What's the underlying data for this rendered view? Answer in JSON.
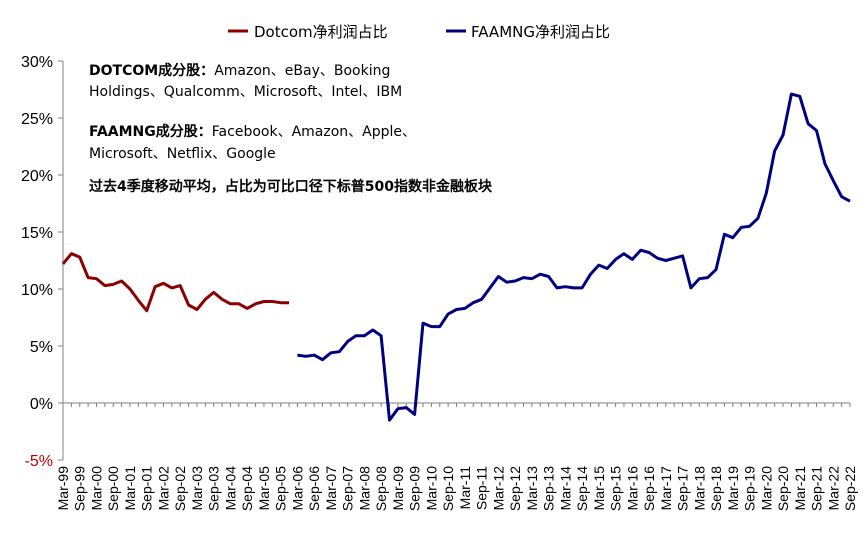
{
  "chart_data": {
    "type": "line",
    "legend": {
      "position": "top",
      "entries": [
        {
          "name": "Dotcom净利润占比",
          "color": "#8b0000"
        },
        {
          "name": "FAAMNG净利润占比",
          "color": "#000080"
        }
      ]
    },
    "ylim": [
      -5,
      30
    ],
    "yticks": [
      "-5%",
      "0%",
      "5%",
      "10%",
      "15%",
      "20%",
      "25%",
      "30%"
    ],
    "ytick_values": [
      -5,
      0,
      5,
      10,
      15,
      20,
      25,
      30
    ],
    "xticks": [
      "Mar-99",
      "Sep-99",
      "Mar-00",
      "Sep-00",
      "Mar-01",
      "Sep-01",
      "Mar-02",
      "Sep-02",
      "Mar-03",
      "Sep-03",
      "Mar-04",
      "Sep-04",
      "Mar-05",
      "Sep-05",
      "Mar-06",
      "Sep-06",
      "Mar-07",
      "Sep-07",
      "Mar-08",
      "Sep-08",
      "Mar-09",
      "Sep-09",
      "Mar-10",
      "Sep-10",
      "Mar-11",
      "Sep-11",
      "Mar-12",
      "Sep-12",
      "Mar-13",
      "Sep-13",
      "Mar-14",
      "Sep-14",
      "Mar-15",
      "Sep-15",
      "Mar-16",
      "Sep-16",
      "Mar-17",
      "Sep-17",
      "Mar-18",
      "Sep-18",
      "Mar-19",
      "Sep-19",
      "Mar-20",
      "Sep-20",
      "Mar-21",
      "Sep-21",
      "Mar-22",
      "Sep-22"
    ],
    "grid": false,
    "annotations": {
      "dotcom_label": "DOTCOM成分股：",
      "dotcom_line1": "Amazon、eBay、Booking",
      "dotcom_line2": "Holdings、Qualcomm、Microsoft、Intel、IBM",
      "faamng_label": "FAAMNG成分股：",
      "faamng_line1": "Facebook、Amazon、Apple、",
      "faamng_line2": "Microsoft、Netflix、Google",
      "note": "过去4季度移动平均，占比为可比口径下标普500指数非金融板块"
    },
    "series": [
      {
        "name": "Dotcom净利润占比",
        "color": "#8b0000",
        "start_x": "Mar-99",
        "frequency": "quarterly",
        "values": [
          12.2,
          13.1,
          12.8,
          11.0,
          10.9,
          10.3,
          10.4,
          10.7,
          10.0,
          9.0,
          8.1,
          10.2,
          10.5,
          10.1,
          10.3,
          8.6,
          8.2,
          9.1,
          9.7,
          9.1,
          8.7,
          8.7,
          8.3,
          8.7,
          8.9,
          8.9,
          8.8,
          8.8
        ]
      },
      {
        "name": "FAAMNG净利润占比",
        "color": "#000080",
        "start_x": "Mar-06",
        "frequency": "quarterly",
        "values": [
          4.2,
          4.1,
          4.2,
          3.8,
          4.4,
          4.5,
          5.4,
          5.9,
          5.9,
          6.4,
          5.9,
          -1.5,
          -0.5,
          -0.4,
          -1.0,
          7.0,
          6.7,
          6.7,
          7.8,
          8.2,
          8.3,
          8.8,
          9.1,
          10.1,
          11.1,
          10.6,
          10.7,
          11.0,
          10.9,
          11.3,
          11.1,
          10.1,
          10.2,
          10.1,
          10.1,
          11.3,
          12.1,
          11.8,
          12.6,
          13.1,
          12.6,
          13.4,
          13.2,
          12.7,
          12.5,
          12.7,
          12.9,
          10.1,
          10.9,
          11.0,
          11.7,
          14.8,
          14.5,
          15.4,
          15.5,
          16.2,
          18.4,
          22.1,
          23.5,
          27.1,
          26.9,
          24.5,
          23.9,
          21.0,
          19.5,
          18.1,
          17.7
        ]
      }
    ]
  }
}
